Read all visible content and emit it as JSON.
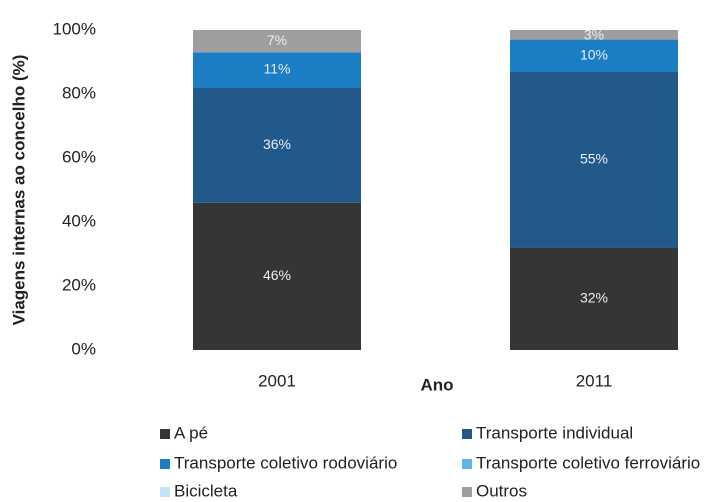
{
  "chart_data": {
    "type": "stacked_bar",
    "y_label": "Viagens internas ao concelho (%)",
    "x_label": "Ano",
    "categories": [
      "2001",
      "2011"
    ],
    "series": [
      {
        "name": "A pé",
        "color": "#353535",
        "values": [
          46,
          32
        ],
        "value_labels": [
          "46%",
          "32%"
        ]
      },
      {
        "name": "Transporte individual",
        "color": "#21598a",
        "values": [
          36,
          55
        ],
        "value_labels": [
          "36%",
          "55%"
        ]
      },
      {
        "name": "Transporte coletivo rodoviário",
        "color": "#1b7dc4",
        "values": [
          11,
          10
        ],
        "value_labels": [
          "11%",
          "10%"
        ]
      },
      {
        "name": "Transporte coletivo ferroviário",
        "color": "#5db6ea",
        "values": [
          0,
          0
        ],
        "value_labels": [
          null,
          null
        ]
      },
      {
        "name": "Bicicleta",
        "color": "#c2e4f6",
        "values": [
          0,
          0
        ],
        "value_labels": [
          null,
          null
        ]
      },
      {
        "name": "Outros",
        "color": "#9e9e9e",
        "values": [
          7,
          3
        ],
        "value_labels": [
          "7%",
          "3%"
        ]
      }
    ],
    "ylim": [
      0,
      100
    ],
    "yticks": [
      {
        "value": 0,
        "label": "0%"
      },
      {
        "value": 20,
        "label": "20%"
      },
      {
        "value": 40,
        "label": "40%"
      },
      {
        "value": 60,
        "label": "60%"
      },
      {
        "value": 80,
        "label": "80%"
      },
      {
        "value": 100,
        "label": "100%"
      }
    ]
  }
}
